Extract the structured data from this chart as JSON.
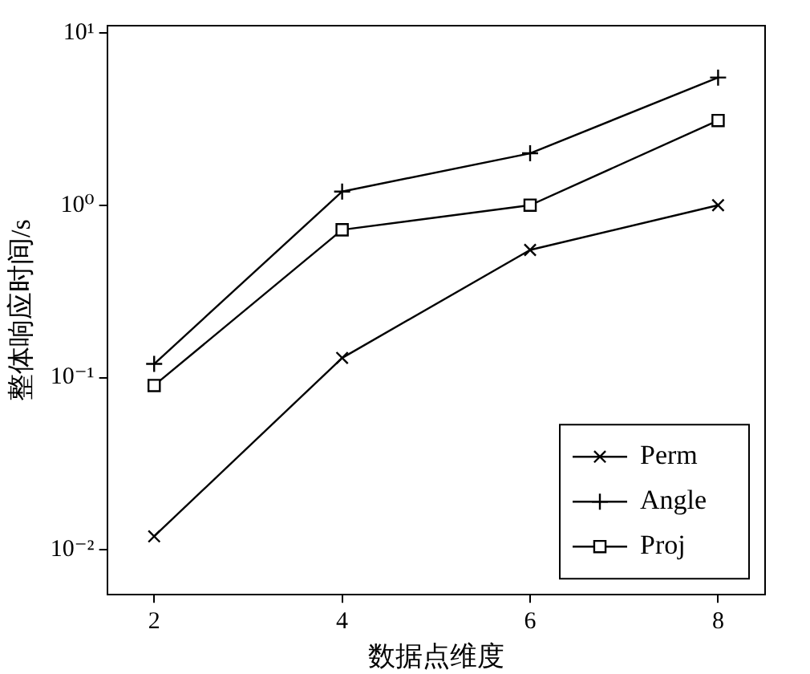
{
  "chart_data": {
    "type": "line",
    "xlabel": "数据点维度",
    "ylabel": "整体响应时间/s",
    "x": [
      2,
      4,
      6,
      8
    ],
    "series": [
      {
        "name": "Perm",
        "color": "#000000",
        "marker": "x",
        "values": [
          0.012,
          0.13,
          0.55,
          1.0
        ]
      },
      {
        "name": "Angle",
        "color": "#000000",
        "marker": "cross",
        "values": [
          0.12,
          1.2,
          2.0,
          5.5
        ]
      },
      {
        "name": "Proj",
        "color": "#000000",
        "marker": "square",
        "values": [
          0.09,
          0.72,
          1.0,
          3.1
        ]
      }
    ],
    "log": "y",
    "xlim": [
      1.5,
      8.5
    ],
    "xticks": [
      2,
      4,
      6,
      8
    ],
    "ylim": [
      0.0055,
      11
    ],
    "yticks": [
      {
        "value": 0.01,
        "label": "10⁻²"
      },
      {
        "value": 0.1,
        "label": "10⁻¹"
      },
      {
        "value": 1,
        "label": "10⁰"
      },
      {
        "value": 10,
        "label": "10¹"
      }
    ],
    "grid": false,
    "legend": "bottom right",
    "line_style": "solid"
  }
}
